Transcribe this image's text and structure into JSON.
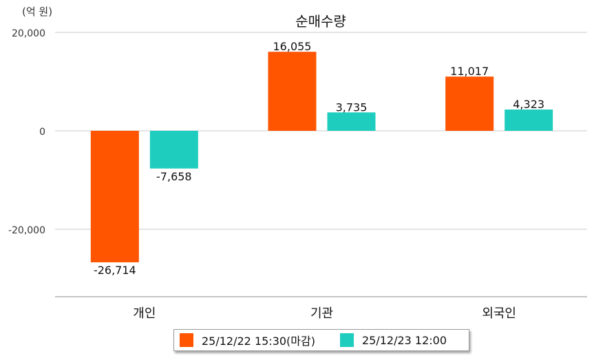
{
  "chart_data": {
    "type": "bar",
    "title": "순매수량",
    "unit": "(억 원)",
    "categories": [
      "개인",
      "기관",
      "외국인"
    ],
    "series": [
      {
        "name": "25/12/22 15:30(마감)",
        "color": "#ff5500",
        "values": [
          -26714,
          16055,
          11017
        ],
        "labels": [
          "-26,714",
          "16,055",
          "11,017"
        ]
      },
      {
        "name": "25/12/23 12:00",
        "color": "#1ecdbe",
        "values": [
          -7658,
          3735,
          4323
        ],
        "labels": [
          "-7,658",
          "3,735",
          "4,323"
        ]
      }
    ],
    "ylim": [
      -34000,
      20000
    ],
    "yticks": [
      {
        "value": 20000,
        "label": "20,000"
      },
      {
        "value": 0,
        "label": "0"
      },
      {
        "value": -20000,
        "label": "-20,000"
      }
    ],
    "grid": true,
    "legend_position": "bottom"
  }
}
